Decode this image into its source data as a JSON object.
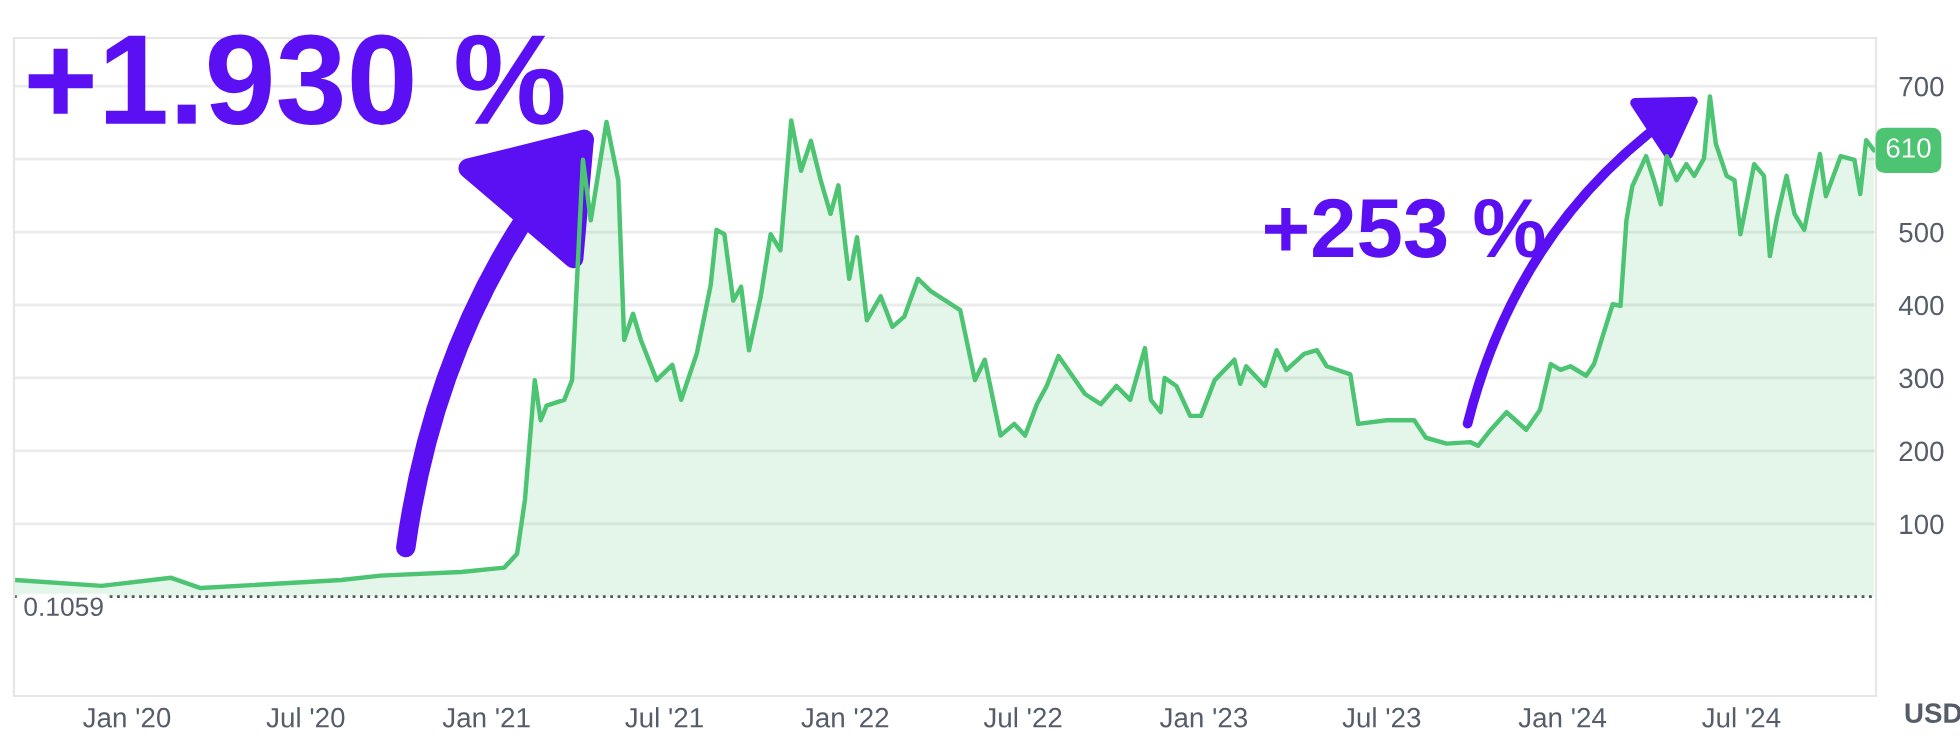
{
  "chart_data": {
    "type": "area",
    "x": [
      "2019-09-09",
      "2019-12-06",
      "2020-02-15",
      "2020-03-16",
      "2020-08-06",
      "2020-09-15",
      "2020-12-06",
      "2021-01-19",
      "2021-02-01",
      "2021-02-09",
      "2021-02-19",
      "2021-02-25",
      "2021-03-03",
      "2021-03-21",
      "2021-03-29",
      "2021-04-09",
      "2021-04-17",
      "2021-05-03",
      "2021-05-15",
      "2021-05-21",
      "2021-05-30",
      "2021-06-07",
      "2021-06-23",
      "2021-07-09",
      "2021-07-18",
      "2021-08-03",
      "2021-08-17",
      "2021-08-23",
      "2021-08-31",
      "2021-09-09",
      "2021-09-17",
      "2021-09-25",
      "2021-10-07",
      "2021-10-17",
      "2021-10-27",
      "2021-11-07",
      "2021-11-17",
      "2021-11-27",
      "2021-12-07",
      "2021-12-17",
      "2021-12-25",
      "2022-01-05",
      "2022-01-13",
      "2022-01-23",
      "2022-02-06",
      "2022-02-18",
      "2022-03-02",
      "2022-03-16",
      "2022-03-29",
      "2022-04-28",
      "2022-05-13",
      "2022-05-23",
      "2022-06-08",
      "2022-06-22",
      "2022-07-03",
      "2022-07-15",
      "2022-07-25",
      "2022-08-06",
      "2022-09-02",
      "2022-09-18",
      "2022-10-04",
      "2022-10-18",
      "2022-11-02",
      "2022-11-08",
      "2022-11-18",
      "2022-11-22",
      "2022-12-04",
      "2022-12-18",
      "2022-12-29",
      "2023-01-12",
      "2023-02-01",
      "2023-02-07",
      "2023-02-13",
      "2023-03-04",
      "2023-03-16",
      "2023-03-26",
      "2023-04-13",
      "2023-04-26",
      "2023-05-06",
      "2023-05-30",
      "2023-06-07",
      "2023-07-06",
      "2023-08-03",
      "2023-08-15",
      "2023-09-05",
      "2023-09-29",
      "2023-10-07",
      "2023-10-20",
      "2023-11-05",
      "2023-11-25",
      "2023-12-09",
      "2023-12-20",
      "2023-12-30",
      "2024-01-09",
      "2024-01-25",
      "2024-02-02",
      "2024-02-11",
      "2024-02-21",
      "2024-02-29",
      "2024-03-06",
      "2024-03-12",
      "2024-03-26",
      "2024-04-03",
      "2024-04-10",
      "2024-04-16",
      "2024-04-26",
      "2024-05-06",
      "2024-05-14",
      "2024-05-24",
      "2024-05-30",
      "2024-06-05",
      "2024-06-16",
      "2024-06-24",
      "2024-06-30",
      "2024-07-14",
      "2024-07-24",
      "2024-07-30",
      "2024-08-06",
      "2024-08-16",
      "2024-08-24",
      "2024-09-03",
      "2024-09-09",
      "2024-09-19",
      "2024-09-25",
      "2024-10-10",
      "2024-10-24",
      "2024-10-30",
      "2024-11-05",
      "2024-11-13"
    ],
    "series": [
      {
        "color": "#4cc472",
        "values": [
          23,
          15,
          26,
          12,
          23,
          29,
          34,
          40,
          59,
          133,
          297,
          242,
          262,
          270,
          297,
          599,
          516,
          651,
          571,
          352,
          388,
          352,
          297,
          318,
          270,
          334,
          427,
          503,
          497,
          406,
          425,
          338,
          412,
          497,
          475,
          653,
          584,
          625,
          571,
          525,
          564,
          436,
          493,
          379,
          412,
          370,
          384,
          436,
          419,
          393,
          297,
          325,
          221,
          237,
          221,
          264,
          289,
          330,
          278,
          264,
          289,
          270,
          341,
          270,
          253,
          300,
          289,
          248,
          248,
          297,
          325,
          292,
          316,
          289,
          338,
          311,
          333,
          338,
          316,
          305,
          237,
          242,
          242,
          218,
          210,
          212,
          207,
          229,
          253,
          229,
          256,
          319,
          311,
          316,
          303,
          319,
          358,
          401,
          399,
          516,
          563,
          604,
          571,
          538,
          604,
          571,
          593,
          577,
          601,
          686,
          621,
          577,
          571,
          497,
          593,
          577,
          467,
          519,
          577,
          525,
          503,
          544,
          607,
          549,
          604,
          599,
          552,
          626,
          612
        ]
      }
    ],
    "xlim": [
      "2019-09-08",
      "2024-11-15"
    ],
    "xticks": [
      {
        "value": "2020-01-01",
        "label": "Jan '20"
      },
      {
        "value": "2020-07-01",
        "label": "Jul '20"
      },
      {
        "value": "2021-01-01",
        "label": "Jan '21"
      },
      {
        "value": "2021-07-01",
        "label": "Jul '21"
      },
      {
        "value": "2022-01-01",
        "label": "Jan '22"
      },
      {
        "value": "2022-07-01",
        "label": "Jul '22"
      },
      {
        "value": "2023-01-01",
        "label": "Jan '23"
      },
      {
        "value": "2023-07-01",
        "label": "Jul '23"
      },
      {
        "value": "2024-01-01",
        "label": "Jan '24"
      },
      {
        "value": "2024-07-01",
        "label": "Jul '24"
      }
    ],
    "ylim": [
      -136,
      766
    ],
    "yticks": [
      100,
      200,
      300,
      400,
      500,
      {
        "value": 600,
        "label": null
      },
      700
    ],
    "grid": "y",
    "ref_lines": [
      {
        "axis": "y",
        "value": 0.1059,
        "label": "0.1059",
        "color": "#555555",
        "line_style": "dotted"
      }
    ],
    "annotations": [
      "+1.930 %",
      "+253 %",
      {
        "text": "610",
        "x": "2024-11-13",
        "y": 612
      },
      "USD"
    ]
  }
}
